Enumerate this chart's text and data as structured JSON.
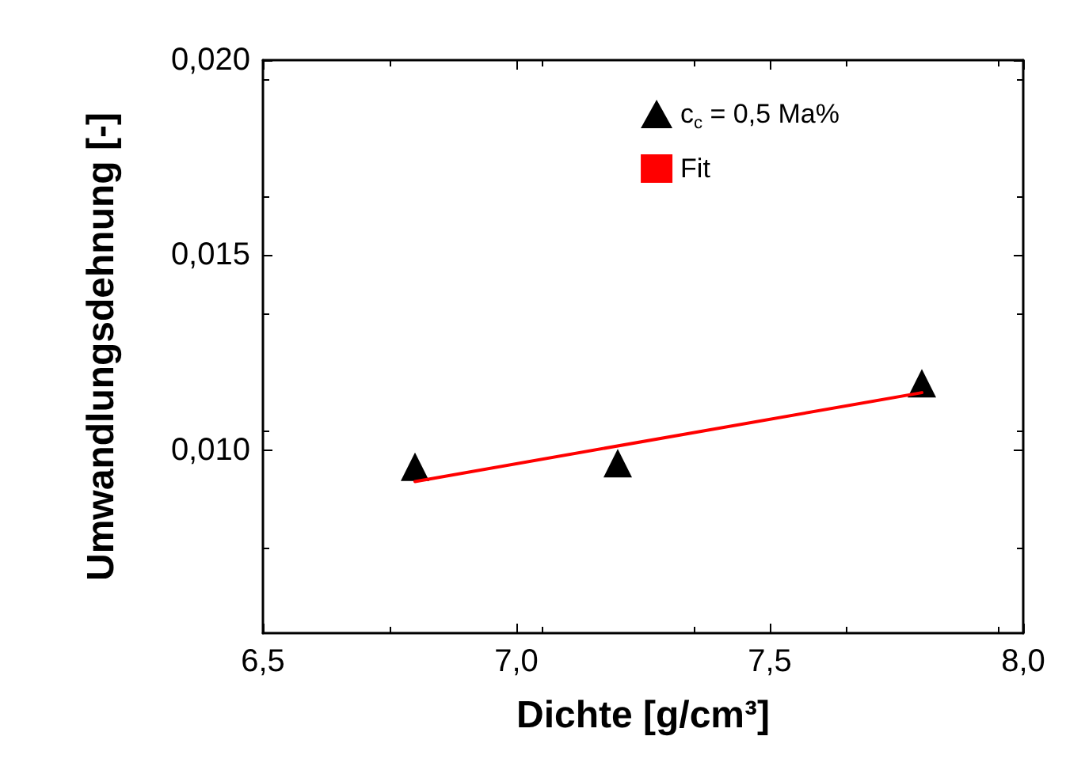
{
  "chart_data": {
    "type": "scatter",
    "xlabel": "Dichte [g/cm³]",
    "ylabel": "Umwandlungsdehnung [-]",
    "xlim": [
      6.5,
      8.0
    ],
    "xticks": [
      {
        "value": 6.5,
        "label": "6,5"
      },
      {
        "value": 7.0,
        "label": "7,0"
      },
      {
        "value": 7.5,
        "label": "7,5"
      },
      {
        "value": 8.0,
        "label": "8,0"
      }
    ],
    "ylim": [
      0.0053,
      0.02
    ],
    "yticks": [
      {
        "value": 0.01,
        "label": "0,010"
      },
      {
        "value": 0.015,
        "label": "0,015"
      },
      {
        "value": 0.02,
        "label": "0,020"
      }
    ],
    "grid": false,
    "legend": "top right",
    "series": [
      {
        "name": "c$_{c}$ = 0,5 Ma%",
        "marker": "triangle",
        "color": "#000000",
        "x": [
          6.8,
          7.2,
          7.8
        ],
        "values": [
          0.00957,
          0.00966,
          0.01171
        ]
      },
      {
        "name": "Fit",
        "type": "line",
        "marker": "none",
        "color": "#ff0000",
        "x": [
          6.8,
          7.8
        ],
        "values": [
          0.00919,
          0.01147
        ]
      }
    ]
  }
}
